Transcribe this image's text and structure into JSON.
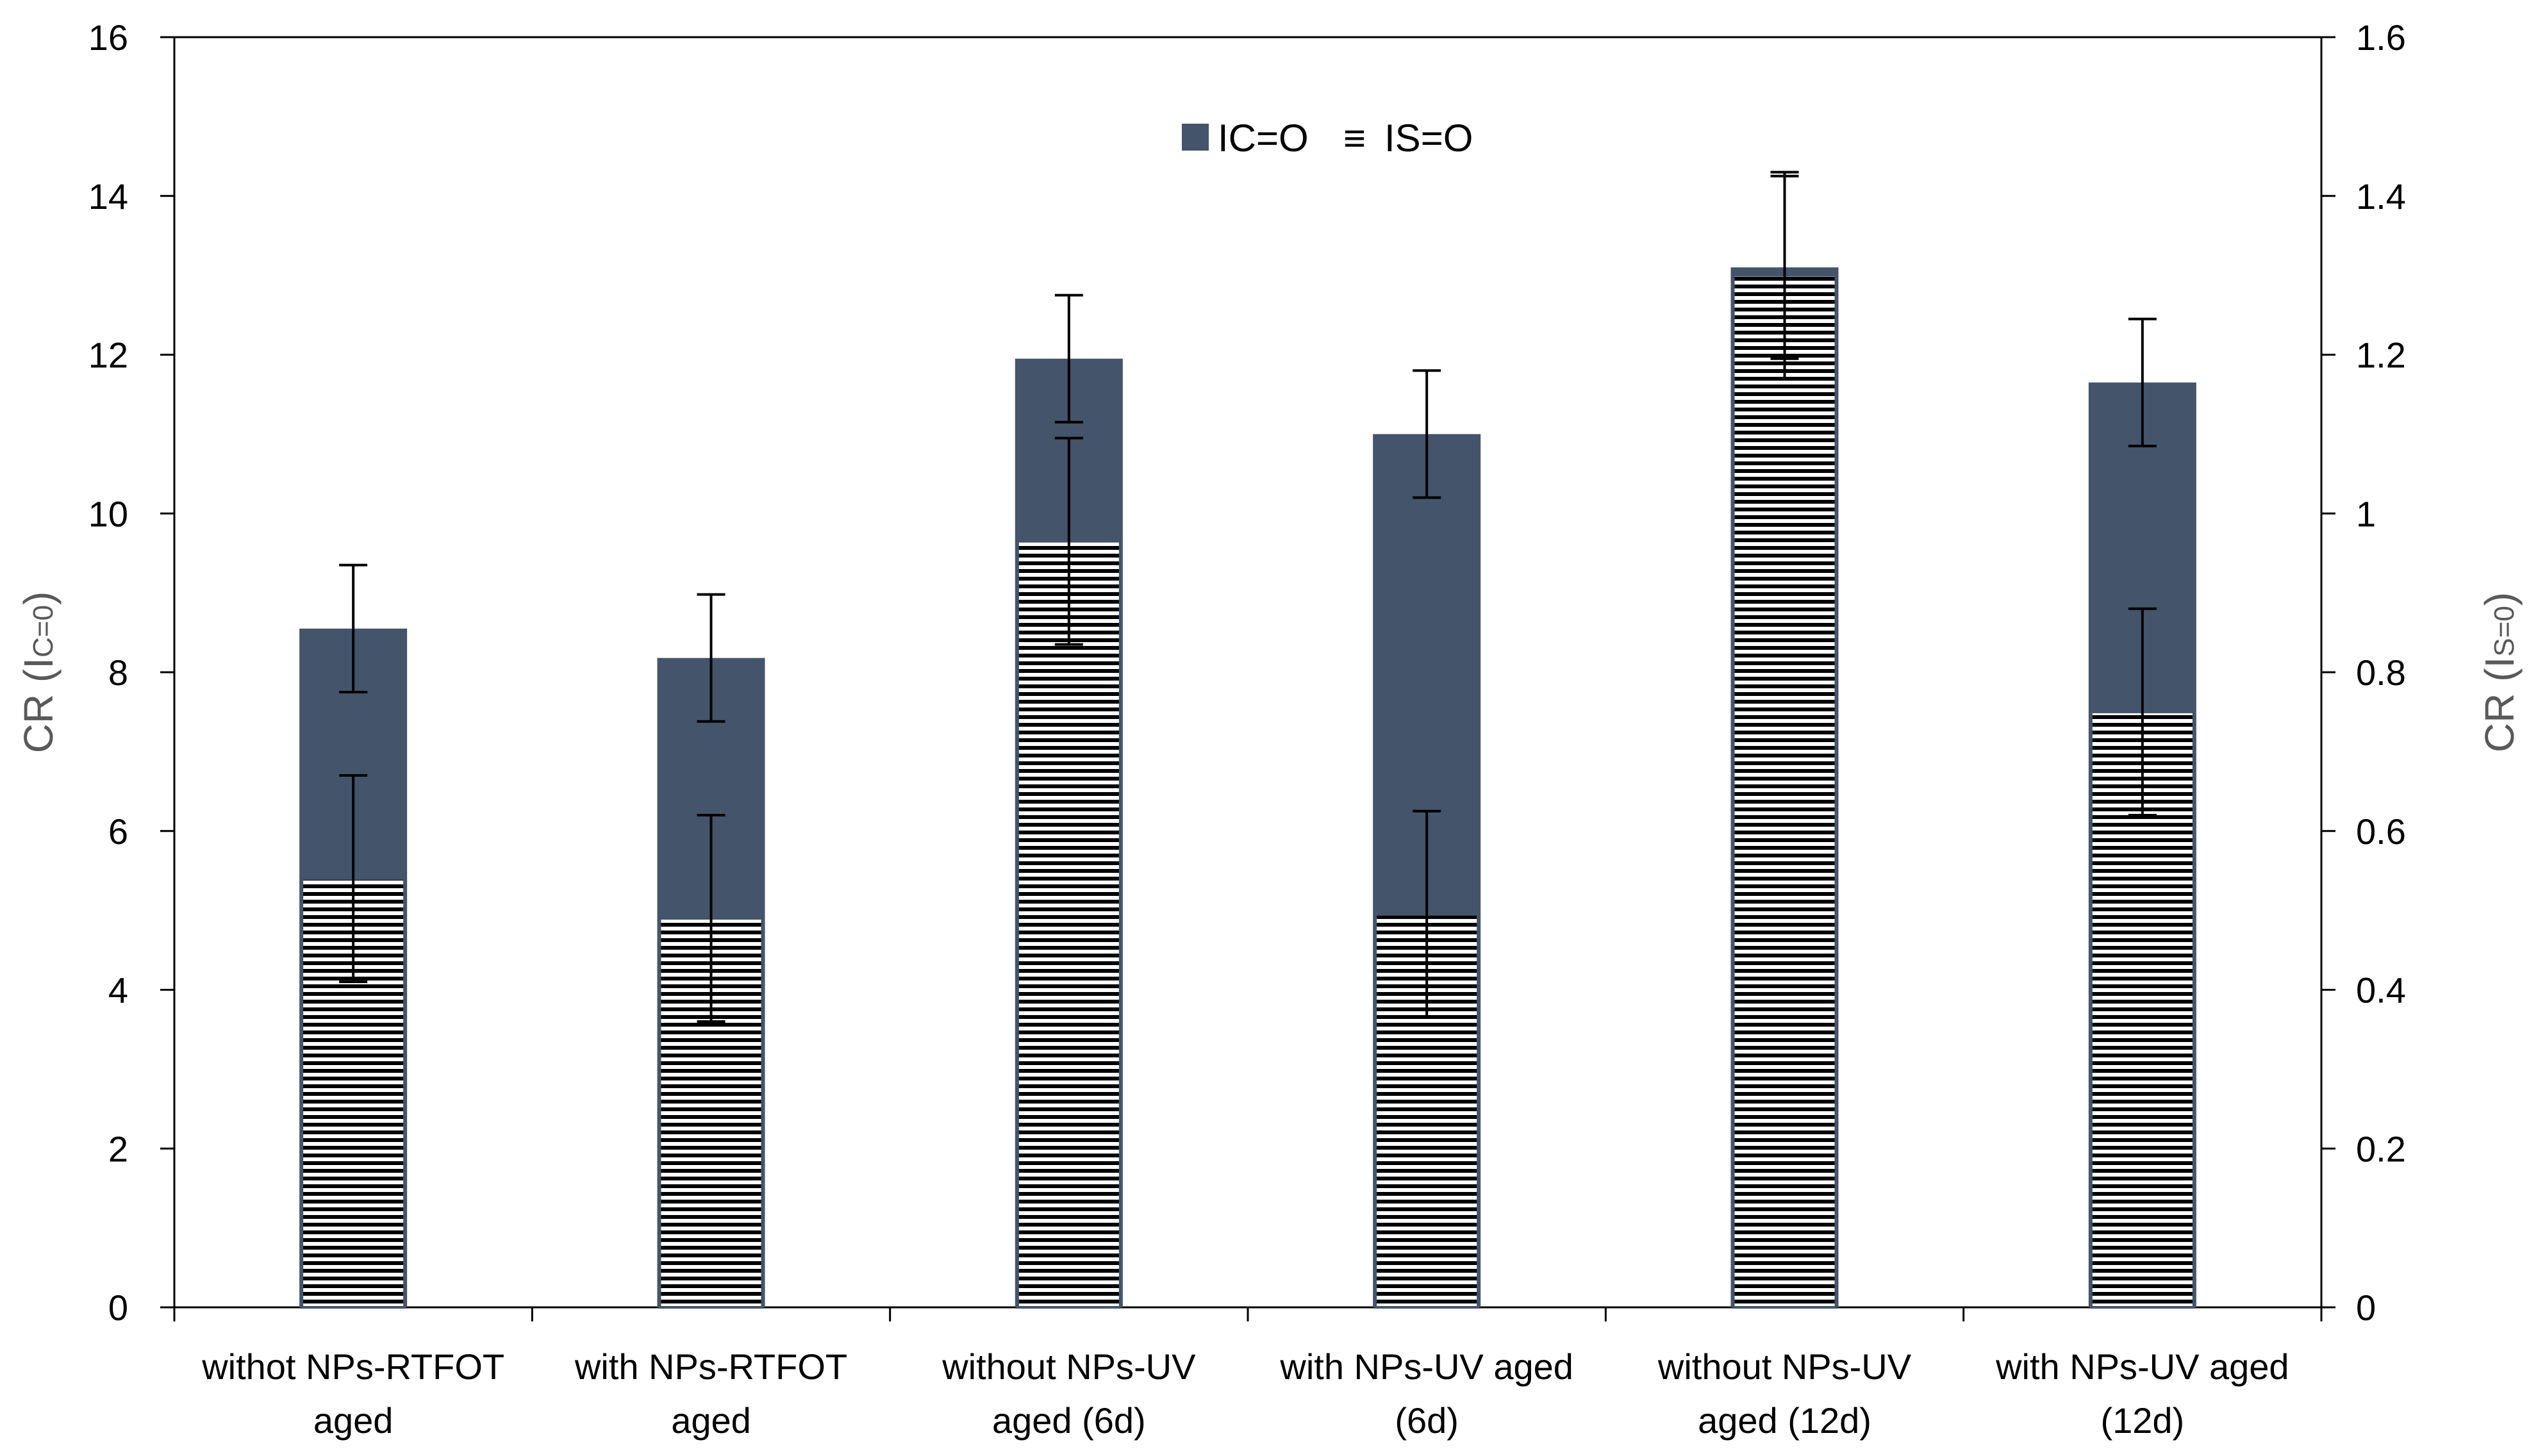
{
  "chart_data": {
    "type": "bar",
    "categories": [
      [
        "withot NPs-RTFOT",
        "aged"
      ],
      [
        "with NPs-RTFOT",
        "aged"
      ],
      [
        "without NPs-UV",
        "aged (6d)"
      ],
      [
        "with NPs-UV aged",
        "(6d)"
      ],
      [
        "without NPs-UV",
        "aged (12d)"
      ],
      [
        "with NPs-UV aged",
        "(12d)"
      ]
    ],
    "series": [
      {
        "name": "IC=O",
        "axis": "left",
        "color": "#44546a",
        "pattern": "solid",
        "values": [
          8.55,
          8.18,
          11.95,
          11.0,
          13.1,
          11.65
        ],
        "errors": [
          0.8,
          0.8,
          0.8,
          0.8,
          1.15,
          0.8
        ]
      },
      {
        "name": "IS=O",
        "axis": "right",
        "color": "#000000",
        "pattern": "horizontal-lines",
        "values": [
          0.54,
          0.49,
          0.965,
          0.495,
          1.3,
          0.75
        ],
        "errors": [
          0.13,
          0.13,
          0.13,
          0.13,
          0.13,
          0.13
        ]
      }
    ],
    "y_left": {
      "label_prefix": "CR (I",
      "label_sub": "C=0",
      "label_suffix": ")",
      "ylim": [
        0,
        16
      ],
      "ticks": [
        "0",
        "2",
        "4",
        "6",
        "8",
        "10",
        "12",
        "14",
        "16"
      ]
    },
    "y_right": {
      "label_prefix": "CR (I",
      "label_sub": "S=0",
      "label_suffix": ")",
      "ylim": [
        0,
        1.6
      ],
      "ticks": [
        "0",
        "0.2",
        "0.4",
        "0.6",
        "0.8",
        "1",
        "1.2",
        "1.4",
        "1.6"
      ]
    },
    "legend": {
      "position": "top-center",
      "items": [
        {
          "label": "IC=O",
          "marker": "square"
        },
        {
          "label": "IS=O",
          "marker": "≡"
        }
      ]
    },
    "grid": false
  }
}
